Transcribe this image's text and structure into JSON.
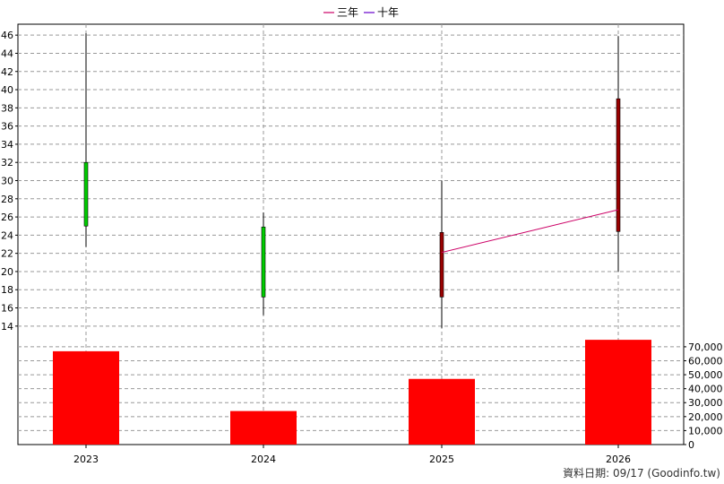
{
  "chart_data": {
    "type": "candlestick",
    "legend": {
      "placement": "top-center",
      "items": [
        {
          "name": "三年",
          "color": "#cc0066"
        },
        {
          "name": "十年",
          "color": "#6600cc"
        }
      ]
    },
    "categories": [
      "2023",
      "2024",
      "2025",
      "2026"
    ],
    "price_axis": {
      "position": "left",
      "ylim": [
        12.8,
        47.2
      ],
      "ticks": [
        14,
        16,
        18,
        20,
        22,
        24,
        26,
        28,
        30,
        32,
        34,
        36,
        38,
        40,
        42,
        44,
        46
      ],
      "tick_labels": [
        "14",
        "16",
        "18",
        "20",
        "22",
        "24",
        "26",
        "28",
        "30",
        "32",
        "34",
        "36",
        "38",
        "40",
        "42",
        "44",
        "46"
      ]
    },
    "candles": [
      {
        "x": "2023",
        "open": 25.0,
        "close": 32.0,
        "high": 46.2,
        "low": 22.7,
        "color": "#00cc00"
      },
      {
        "x": "2024",
        "open": 17.2,
        "close": 24.9,
        "high": 26.5,
        "low": 15.2,
        "color": "#00cc00"
      },
      {
        "x": "2025",
        "open": 24.3,
        "close": 17.2,
        "high": 30.0,
        "low": 13.8,
        "color": "#990000"
      },
      {
        "x": "2026",
        "open": 39.0,
        "close": 24.4,
        "high": 45.9,
        "low": 20.0,
        "color": "#990000"
      }
    ],
    "series": [
      {
        "name": "三年",
        "color": "#cc0066",
        "points": [
          {
            "x": "2025",
            "y": 22.1
          },
          {
            "x": "2026",
            "y": 26.8
          }
        ]
      }
    ],
    "volume_axis": {
      "position": "right",
      "ylim": [
        0,
        77000
      ],
      "ticks": [
        0,
        10000,
        20000,
        30000,
        40000,
        50000,
        60000,
        70000
      ],
      "tick_labels": [
        "0",
        "10,000",
        "20,000",
        "30,000",
        "40,000",
        "50,000",
        "60,000",
        "70,000"
      ]
    },
    "volume": {
      "color": "#ff0000",
      "values": [
        66800,
        24000,
        47000,
        75000
      ]
    },
    "grid": true
  },
  "footer": {
    "text": "資料日期: 09/17  (Goodinfo.tw)"
  }
}
